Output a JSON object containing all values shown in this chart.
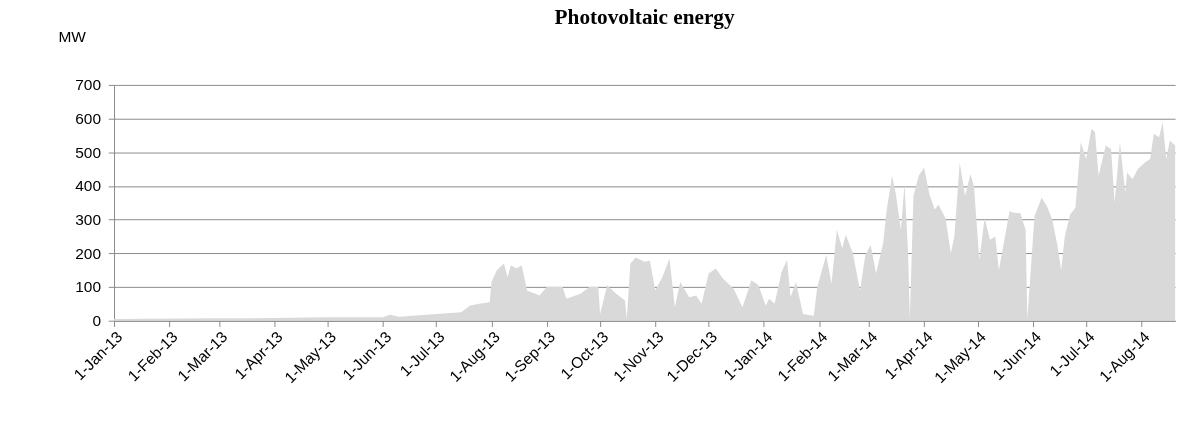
{
  "chart_data": {
    "type": "area",
    "title": "Photovoltaic energy",
    "ylabel": "MW",
    "x": [
      "2013-01-01",
      "2013-03-01",
      "2013-04-01",
      "2013-05-01",
      "2013-06-01",
      "2013-06-05",
      "2013-06-10",
      "2013-07-01",
      "2013-07-15",
      "2013-07-20",
      "2013-07-25",
      "2013-07-31",
      "2013-08-01",
      "2013-08-04",
      "2013-08-08",
      "2013-08-10",
      "2013-08-12",
      "2013-08-15",
      "2013-08-18",
      "2013-08-21",
      "2013-08-28",
      "2013-09-01",
      "2013-09-10",
      "2013-09-12",
      "2013-09-20",
      "2013-09-25",
      "2013-09-30",
      "2013-10-01",
      "2013-10-05",
      "2013-10-10",
      "2013-10-15",
      "2013-10-16",
      "2013-10-18",
      "2013-10-21",
      "2013-10-26",
      "2013-10-29",
      "2013-11-01",
      "2013-11-05",
      "2013-11-09",
      "2013-11-12",
      "2013-11-15",
      "2013-11-20",
      "2013-11-24",
      "2013-11-27",
      "2013-12-01",
      "2013-12-05",
      "2013-12-09",
      "2013-12-15",
      "2013-12-20",
      "2013-12-25",
      "2013-12-29",
      "2014-01-02",
      "2014-01-04",
      "2014-01-07",
      "2014-01-11",
      "2014-01-14",
      "2014-01-16",
      "2014-01-19",
      "2014-01-23",
      "2014-01-29",
      "2014-01-31",
      "2014-02-05",
      "2014-02-08",
      "2014-02-11",
      "2014-02-14",
      "2014-02-16",
      "2014-02-20",
      "2014-02-24",
      "2014-02-27",
      "2014-03-02",
      "2014-03-05",
      "2014-03-09",
      "2014-03-11",
      "2014-03-14",
      "2014-03-16",
      "2014-03-19",
      "2014-03-21",
      "2014-03-23",
      "2014-03-24",
      "2014-03-26",
      "2014-03-29",
      "2014-04-01",
      "2014-04-04",
      "2014-04-07",
      "2014-04-09",
      "2014-04-13",
      "2014-04-16",
      "2014-04-18",
      "2014-04-21",
      "2014-04-24",
      "2014-04-27",
      "2014-04-29",
      "2014-05-02",
      "2014-05-05",
      "2014-05-08",
      "2014-05-11",
      "2014-05-13",
      "2014-05-19",
      "2014-05-22",
      "2014-05-25",
      "2014-05-28",
      "2014-05-29",
      "2014-06-02",
      "2014-06-06",
      "2014-06-09",
      "2014-06-12",
      "2014-06-15",
      "2014-06-17",
      "2014-06-19",
      "2014-06-22",
      "2014-06-25",
      "2014-06-28",
      "2014-07-01",
      "2014-07-04",
      "2014-07-06",
      "2014-07-08",
      "2014-07-12",
      "2014-07-15",
      "2014-07-17",
      "2014-07-20",
      "2014-07-23",
      "2014-07-24",
      "2014-07-27",
      "2014-07-30",
      "2014-08-03",
      "2014-08-06",
      "2014-08-08",
      "2014-08-11",
      "2014-08-13",
      "2014-08-15",
      "2014-08-17",
      "2014-08-20"
    ],
    "series": [
      {
        "color": "#d9d9d9",
        "values": [
          5,
          7,
          8,
          10,
          10,
          18,
          12,
          20,
          25,
          45,
          50,
          55,
          115,
          150,
          170,
          130,
          165,
          155,
          165,
          90,
          75,
          100,
          100,
          65,
          80,
          100,
          100,
          20,
          105,
          80,
          60,
          5,
          170,
          188,
          175,
          178,
          90,
          130,
          185,
          40,
          115,
          70,
          75,
          50,
          140,
          155,
          125,
          95,
          40,
          120,
          105,
          45,
          65,
          50,
          145,
          180,
          70,
          115,
          20,
          15,
          100,
          195,
          110,
          270,
          215,
          255,
          200,
          90,
          195,
          225,
          140,
          230,
          330,
          430,
          380,
          270,
          405,
          200,
          5,
          370,
          430,
          455,
          375,
          330,
          345,
          305,
          200,
          250,
          470,
          370,
          435,
          400,
          180,
          305,
          240,
          250,
          150,
          325,
          320,
          320,
          270,
          5,
          310,
          365,
          340,
          300,
          220,
          150,
          250,
          315,
          335,
          530,
          480,
          570,
          560,
          430,
          520,
          510,
          350,
          530,
          380,
          440,
          420,
          450,
          470,
          480,
          555,
          545,
          590,
          480,
          535,
          520
        ]
      }
    ],
    "xlim": [
      "2013-01-01",
      "2014-08-20"
    ],
    "xticks": [
      {
        "value": "2013-01-01",
        "label": "1-Jan-13"
      },
      {
        "value": "2013-02-01",
        "label": "1-Feb-13"
      },
      {
        "value": "2013-03-01",
        "label": "1-Mar-13"
      },
      {
        "value": "2013-04-01",
        "label": "1-Apr-13"
      },
      {
        "value": "2013-05-01",
        "label": "1-May-13"
      },
      {
        "value": "2013-06-01",
        "label": "1-Jun-13"
      },
      {
        "value": "2013-07-01",
        "label": "1-Jul-13"
      },
      {
        "value": "2013-08-01",
        "label": "1-Aug-13"
      },
      {
        "value": "2013-09-01",
        "label": "1-Sep-13"
      },
      {
        "value": "2013-10-01",
        "label": "1-Oct-13"
      },
      {
        "value": "2013-11-01",
        "label": "1-Nov-13"
      },
      {
        "value": "2013-12-01",
        "label": "1-Dec-13"
      },
      {
        "value": "2014-01-01",
        "label": "1-Jan-14"
      },
      {
        "value": "2014-02-01",
        "label": "1-Feb-14"
      },
      {
        "value": "2014-03-01",
        "label": "1-Mar-14"
      },
      {
        "value": "2014-04-01",
        "label": "1-Apr-14"
      },
      {
        "value": "2014-05-01",
        "label": "1-May-14"
      },
      {
        "value": "2014-06-01",
        "label": "1-Jun-14"
      },
      {
        "value": "2014-07-01",
        "label": "1-Jul-14"
      },
      {
        "value": "2014-08-01",
        "label": "1-Aug-14"
      }
    ],
    "ylim": [
      0,
      700
    ],
    "yticks": [
      0,
      100,
      200,
      300,
      400,
      500,
      600,
      700
    ],
    "grid": "y"
  }
}
